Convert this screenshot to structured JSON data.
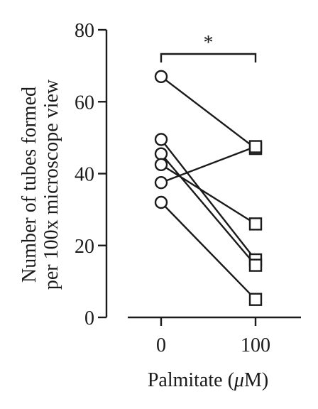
{
  "chart_data": {
    "type": "scatter",
    "subtype": "paired-lines",
    "xlabel_prefix": "Palmitate (",
    "xlabel_unit": "μ",
    "xlabel_suffix": "M)",
    "ylabel_line1": "Number of tubes formed",
    "ylabel_line2": "per 100x microscope view",
    "categories": [
      "0",
      "100"
    ],
    "ylim": [
      0,
      80
    ],
    "yticks": [
      0,
      20,
      40,
      60,
      80
    ],
    "grid": false,
    "legend": "none",
    "markers": {
      "0": "circle",
      "100": "square"
    },
    "pairs": [
      {
        "values": [
          67,
          47
        ]
      },
      {
        "values": [
          49.5,
          16
        ]
      },
      {
        "values": [
          45.5,
          14.5
        ]
      },
      {
        "values": [
          42.5,
          26
        ]
      },
      {
        "values": [
          37.5,
          47.5
        ]
      },
      {
        "values": [
          32,
          5
        ]
      }
    ],
    "significance": {
      "label": "*",
      "between": [
        "0",
        "100"
      ]
    },
    "colors": {
      "ink": "#1a1a1a",
      "marker_fill": "#ffffff"
    }
  }
}
